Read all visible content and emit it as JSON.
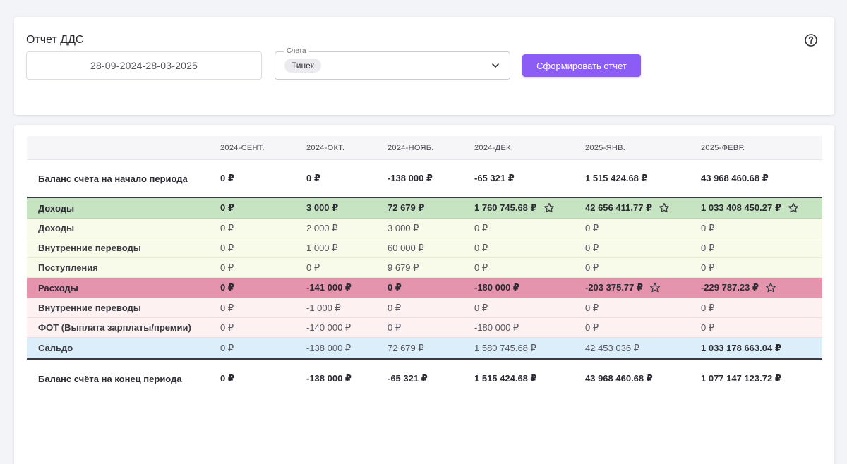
{
  "header": {
    "title": "Отчет ДДС",
    "date_range": "28-09-2024-28-03-2025",
    "accounts_label": "Счета",
    "accounts_chip": "Тинек",
    "submit_label": "Сформировать отчет"
  },
  "colors": {
    "accent": "#8b5cf6",
    "income_total_bg": "#c6e3c2",
    "income_row_bg": "#f8fbe9",
    "expense_total_bg": "#e495ad",
    "expense_row_bg": "#fdf1f1",
    "saldo_bg": "#dbeefa"
  },
  "table": {
    "columns": [
      "2024-СЕНТ.",
      "2024-ОКТ.",
      "2024-НОЯБ.",
      "2024-ДЕК.",
      "2025-ЯНВ.",
      "2025-ФЕВР."
    ],
    "rows": [
      {
        "label": "Баланс счёта на начало периода",
        "values": [
          "0 ₽",
          "0 ₽",
          "-138 000 ₽",
          "-65 321 ₽",
          "1 515 424.68 ₽",
          "43 968 460.68 ₽"
        ]
      },
      {
        "label": "Доходы",
        "values": [
          "0 ₽",
          "3 000 ₽",
          "72 679 ₽",
          "1 760 745.68 ₽",
          "42 656 411.77 ₽",
          "1 033 408 450.27 ₽"
        ]
      },
      {
        "label": "Доходы",
        "values": [
          "0 ₽",
          "2 000 ₽",
          "3 000 ₽",
          "0 ₽",
          "0 ₽",
          "0 ₽"
        ]
      },
      {
        "label": "Внутренние переводы",
        "values": [
          "0 ₽",
          "1 000 ₽",
          "60 000 ₽",
          "0 ₽",
          "0 ₽",
          "0 ₽"
        ]
      },
      {
        "label": "Поступления",
        "values": [
          "0 ₽",
          "0 ₽",
          "9 679 ₽",
          "0 ₽",
          "0 ₽",
          "0 ₽"
        ]
      },
      {
        "label": "Расходы",
        "values": [
          "0 ₽",
          "-141 000 ₽",
          "0 ₽",
          "-180 000 ₽",
          "-203 375.77 ₽",
          "-229 787.23 ₽"
        ]
      },
      {
        "label": "Внутренние переводы",
        "values": [
          "0 ₽",
          "-1 000 ₽",
          "0 ₽",
          "0 ₽",
          "0 ₽",
          "0 ₽"
        ]
      },
      {
        "label": "ФОТ (Выплата зарплаты/премии)",
        "values": [
          "0 ₽",
          "-140 000 ₽",
          "0 ₽",
          "-180 000 ₽",
          "0 ₽",
          "0 ₽"
        ]
      },
      {
        "label": "Сальдо",
        "values": [
          "0 ₽",
          "-138 000 ₽",
          "72 679 ₽",
          "1 580 745.68 ₽",
          "42 453 036 ₽",
          "1 033 178 663.04 ₽"
        ]
      },
      {
        "label": "Баланс счёта на конец периода",
        "values": [
          "0 ₽",
          "-138 000 ₽",
          "-65 321 ₽",
          "1 515 424.68 ₽",
          "43 968 460.68 ₽",
          "1 077 147 123.72 ₽"
        ]
      }
    ]
  }
}
